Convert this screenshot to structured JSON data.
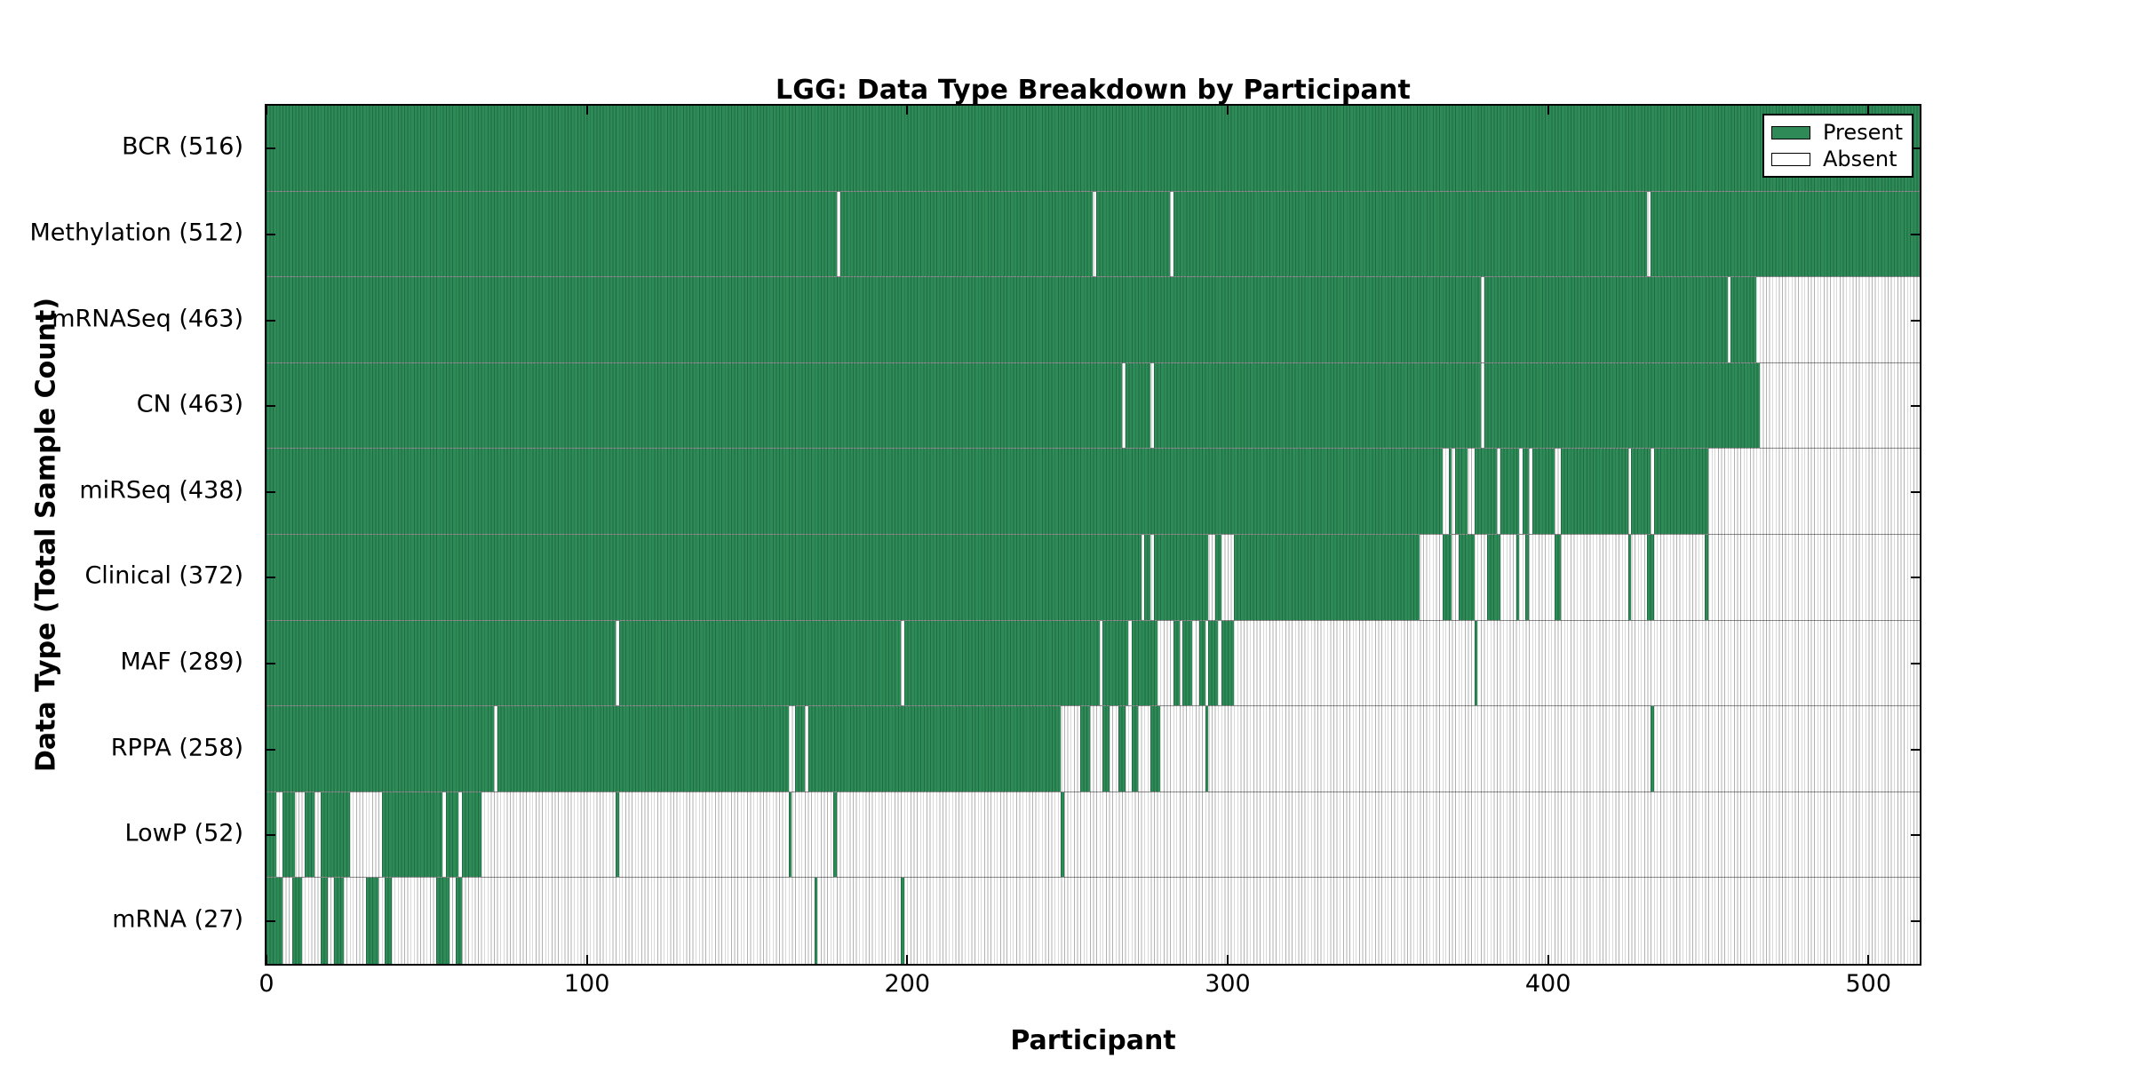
{
  "chart_data": {
    "type": "heatmap",
    "title": "LGG: Data Type Breakdown by Participant",
    "xlabel": "Participant",
    "ylabel": "Data Type (Total Sample Count)",
    "x_ticks": [
      0,
      100,
      200,
      300,
      400,
      500
    ],
    "xlim": [
      0,
      516
    ],
    "n_participants": 516,
    "grid": false,
    "legend": {
      "position": "upper right",
      "entries": [
        {
          "label": "Present",
          "color": "#2e8b57"
        },
        {
          "label": "Absent",
          "color": "#ffffff"
        }
      ]
    },
    "colors": {
      "present": "#2e8b57",
      "present_edge": "#1f6b43",
      "absent": "#ffffff",
      "absent_edge": "#b0b0b0"
    },
    "rows": [
      {
        "label": "BCR (516)",
        "name": "BCR",
        "count": 516,
        "present_ranges": [
          [
            0,
            516
          ]
        ]
      },
      {
        "label": "Methylation (512)",
        "name": "Methylation",
        "count": 512,
        "present_ranges": [
          [
            0,
            178
          ],
          [
            179,
            258
          ],
          [
            259,
            282
          ],
          [
            283,
            431
          ],
          [
            432,
            516
          ]
        ]
      },
      {
        "label": "mRNASeq (463)",
        "name": "mRNASeq",
        "count": 463,
        "present_ranges": [
          [
            0,
            379
          ],
          [
            380,
            456
          ],
          [
            457,
            465
          ]
        ]
      },
      {
        "label": "CN (463)",
        "name": "CN",
        "count": 463,
        "present_ranges": [
          [
            0,
            267
          ],
          [
            268,
            276
          ],
          [
            277,
            379
          ],
          [
            380,
            466
          ]
        ]
      },
      {
        "label": "miRSeq (438)",
        "name": "miRSeq",
        "count": 438,
        "present_ranges": [
          [
            0,
            367
          ],
          [
            369,
            370
          ],
          [
            371,
            375
          ],
          [
            377,
            384
          ],
          [
            385,
            391
          ],
          [
            392,
            394
          ],
          [
            395,
            402
          ],
          [
            404,
            425
          ],
          [
            426,
            432
          ],
          [
            433,
            450
          ]
        ]
      },
      {
        "label": "Clinical (372)",
        "name": "Clinical",
        "count": 372,
        "present_ranges": [
          [
            0,
            273
          ],
          [
            274,
            276
          ],
          [
            277,
            294
          ],
          [
            296,
            298
          ],
          [
            302,
            360
          ],
          [
            367,
            370
          ],
          [
            372,
            377
          ],
          [
            381,
            385
          ],
          [
            390,
            391
          ],
          [
            393,
            394
          ],
          [
            402,
            404
          ],
          [
            425,
            426
          ],
          [
            431,
            433
          ],
          [
            449,
            450
          ]
        ]
      },
      {
        "label": "MAF (289)",
        "name": "MAF",
        "count": 289,
        "present_ranges": [
          [
            0,
            109
          ],
          [
            110,
            198
          ],
          [
            199,
            260
          ],
          [
            261,
            269
          ],
          [
            270,
            278
          ],
          [
            283,
            285
          ],
          [
            286,
            289
          ],
          [
            291,
            293
          ],
          [
            294,
            297
          ],
          [
            298,
            302
          ],
          [
            377,
            378
          ]
        ]
      },
      {
        "label": "RPPA (258)",
        "name": "RPPA",
        "count": 258,
        "present_ranges": [
          [
            0,
            71
          ],
          [
            72,
            163
          ],
          [
            165,
            168
          ],
          [
            169,
            248
          ],
          [
            254,
            257
          ],
          [
            261,
            263
          ],
          [
            266,
            268
          ],
          [
            270,
            272
          ],
          [
            276,
            279
          ],
          [
            293,
            294
          ],
          [
            432,
            433
          ]
        ]
      },
      {
        "label": "LowP (52)",
        "name": "LowP",
        "count": 52,
        "present_ranges": [
          [
            0,
            3
          ],
          [
            5,
            9
          ],
          [
            12,
            15
          ],
          [
            17,
            26
          ],
          [
            36,
            55
          ],
          [
            56,
            60
          ],
          [
            61,
            67
          ],
          [
            109,
            110
          ],
          [
            163,
            164
          ],
          [
            177,
            178
          ],
          [
            248,
            249
          ]
        ]
      },
      {
        "label": "mRNA (27)",
        "name": "mRNA",
        "count": 27,
        "present_ranges": [
          [
            0,
            5
          ],
          [
            8,
            11
          ],
          [
            17,
            19
          ],
          [
            21,
            24
          ],
          [
            31,
            35
          ],
          [
            37,
            39
          ],
          [
            53,
            57
          ],
          [
            59,
            61
          ],
          [
            171,
            172
          ],
          [
            198,
            199
          ]
        ]
      }
    ]
  }
}
